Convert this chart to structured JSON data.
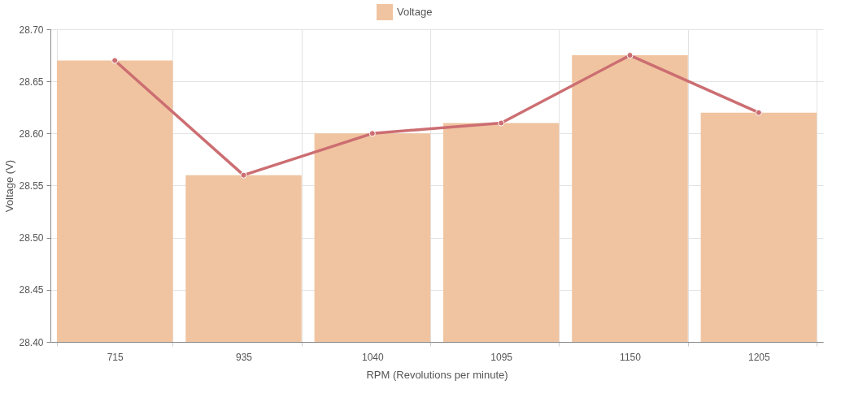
{
  "chart_data": {
    "type": "bar",
    "xlabel": "RPM (Revolutions per minute)",
    "ylabel": "Voltage (V)",
    "categories": [
      "715",
      "935",
      "1040",
      "1095",
      "1150",
      "1205"
    ],
    "series": [
      {
        "name": "Voltage",
        "color": "#f0c4a0",
        "values": [
          28.67,
          28.56,
          28.6,
          28.61,
          28.675,
          28.62
        ]
      },
      {
        "type": "line",
        "color": "#cc6e72",
        "values": [
          28.67,
          28.56,
          28.6,
          28.61,
          28.675,
          28.62
        ]
      }
    ],
    "ylim": [
      28.4,
      28.7
    ],
    "yticks": [
      {
        "value": 28.4,
        "label": "28.40"
      },
      {
        "value": 28.45,
        "label": "28.45"
      },
      {
        "value": 28.5,
        "label": "28.50"
      },
      {
        "value": 28.55,
        "label": "28.55"
      },
      {
        "value": 28.6,
        "label": "28.60"
      },
      {
        "value": 28.65,
        "label": "28.65"
      },
      {
        "value": 28.7,
        "label": "28.70"
      }
    ],
    "grid": true,
    "legend": "top",
    "marker": "circle",
    "line_style": "solid"
  }
}
